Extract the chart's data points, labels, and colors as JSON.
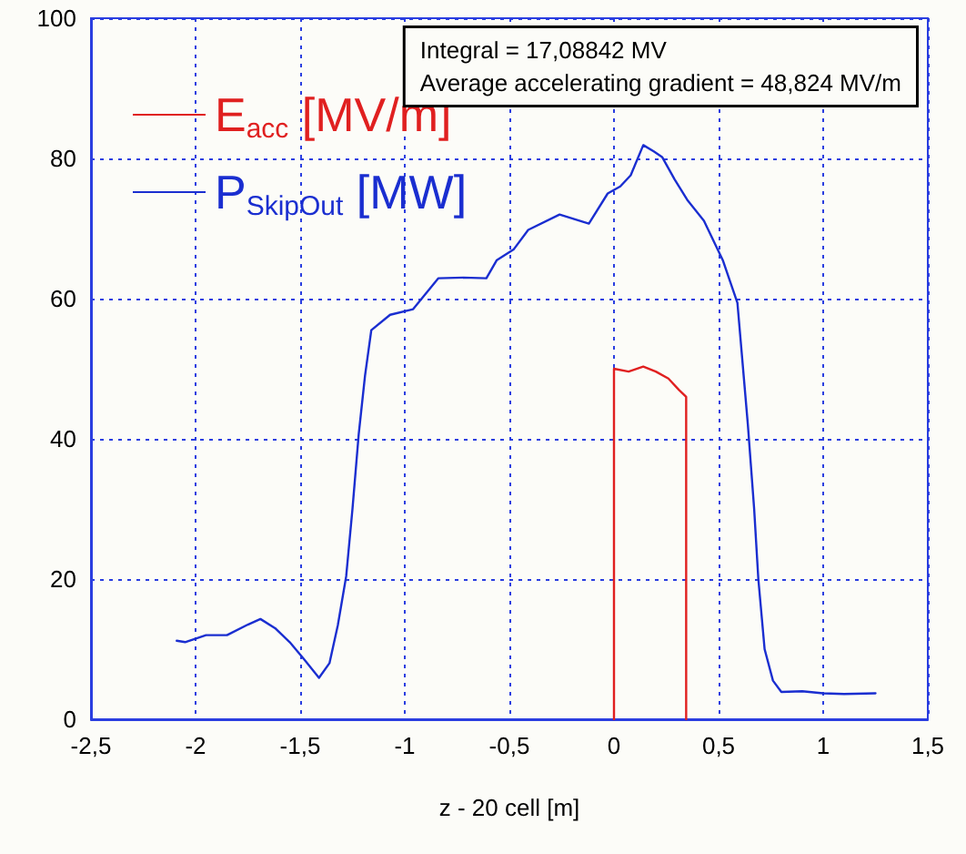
{
  "chart_data": {
    "type": "line",
    "xlabel": "z - 20 cell [m]",
    "annotations": [
      "Integral = 17,08842 MV",
      "Average accelerating gradient = 48,824 MV/m"
    ],
    "xlim": [
      -2.5,
      1.5
    ],
    "xticks": [
      {
        "value": -2.5,
        "label": "-2,5"
      },
      -2,
      {
        "value": -1.5,
        "label": "-1,5"
      },
      -1,
      {
        "value": -0.5,
        "label": "-0,5"
      },
      0,
      {
        "value": 0.5,
        "label": "0,5"
      },
      1,
      {
        "value": 1.5,
        "label": "1,5"
      }
    ],
    "ylim": [
      0,
      100
    ],
    "yticks": [
      0,
      20,
      40,
      60,
      80,
      100
    ],
    "grid": true,
    "legend": "top left",
    "marker": "none",
    "line_style": "solid",
    "series": [
      {
        "name": "E$_{acc}$ [MV/m]",
        "color": "#e02020",
        "x": [
          0,
          0,
          0.07,
          0.14,
          0.2,
          0.26,
          0.31,
          0.345,
          0.345
        ],
        "values": [
          0,
          50,
          49.6,
          50.3,
          49.6,
          48.6,
          47,
          46,
          0
        ]
      },
      {
        "name": "P$_{SkipOut}$ [MW]",
        "color": "#1a2ed0",
        "x": [
          -2.09,
          -2.05,
          -1.95,
          -1.85,
          -1.75,
          -1.69,
          -1.62,
          -1.55,
          -1.48,
          -1.41,
          -1.36,
          -1.32,
          -1.28,
          -1.25,
          -1.22,
          -1.19,
          -1.16,
          -1.07,
          -0.96,
          -0.84,
          -0.72,
          -0.61,
          -0.56,
          -0.48,
          -0.41,
          -0.26,
          -0.12,
          -0.03,
          0.03,
          0.08,
          0.14,
          0.19,
          0.23,
          0.29,
          0.35,
          0.43,
          0.52,
          0.59,
          0.64,
          0.67,
          0.69,
          0.72,
          0.76,
          0.8,
          0.9,
          1.0,
          1.1,
          1.25
        ],
        "values": [
          11.2,
          11,
          12,
          12,
          13.5,
          14.3,
          13,
          11,
          8.5,
          5.9,
          8,
          13.4,
          20.4,
          30,
          40.7,
          49,
          55.5,
          57.7,
          58.5,
          62.9,
          63,
          62.9,
          65.5,
          67,
          69.8,
          72,
          70.7,
          75,
          76,
          77.6,
          81.9,
          81,
          80.2,
          77,
          74.1,
          71.1,
          65.5,
          59.4,
          42,
          30,
          20,
          10,
          5.5,
          3.9,
          4,
          3.7,
          3.6,
          3.7
        ]
      }
    ]
  }
}
